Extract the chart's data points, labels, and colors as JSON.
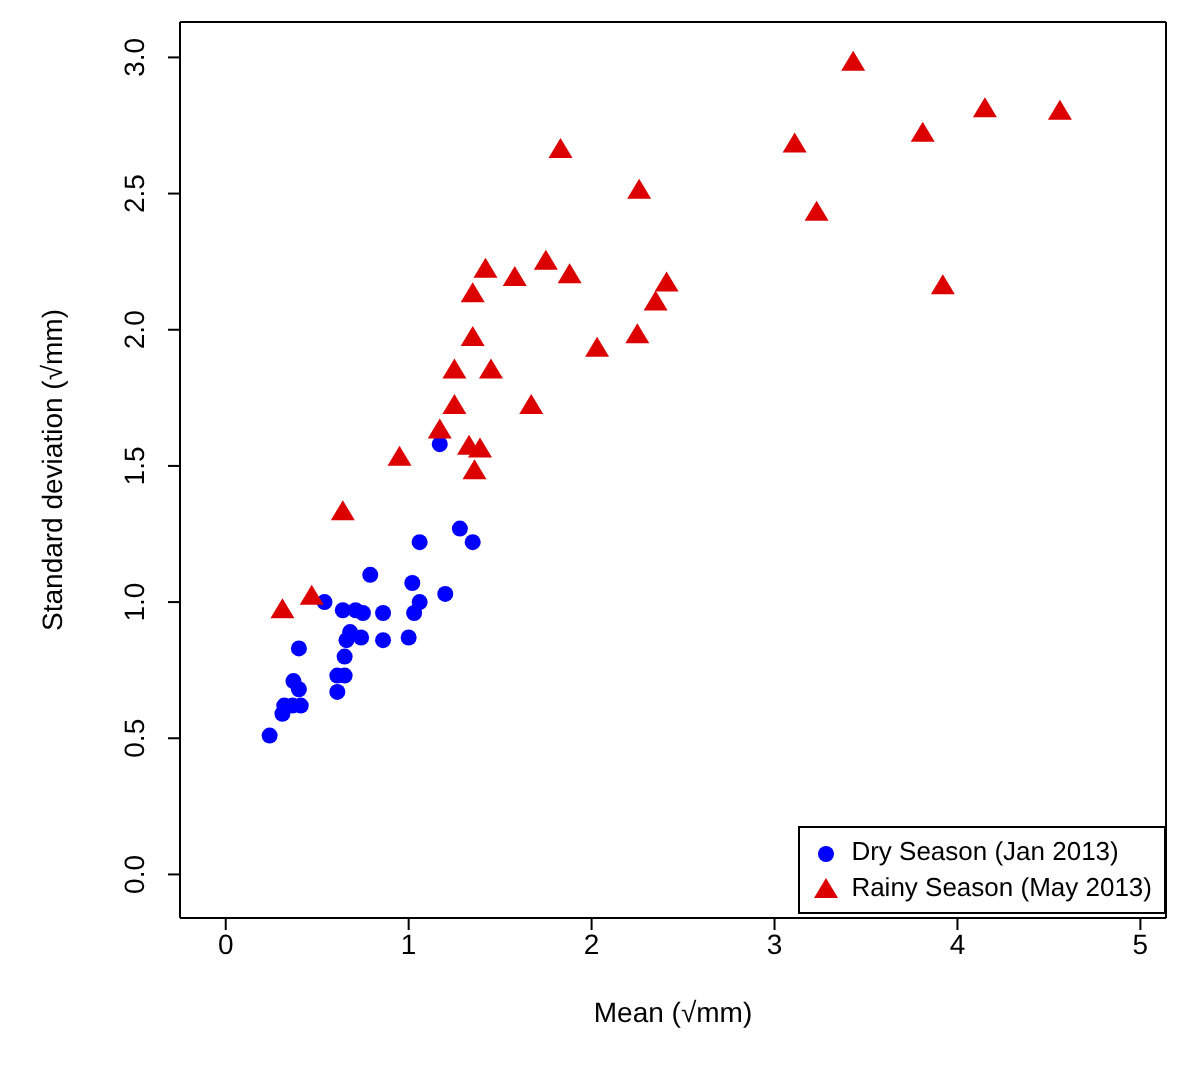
{
  "chart_data": {
    "type": "scatter",
    "xlabel": "Mean (√mm)",
    "ylabel": "Standard deviation (√mm)",
    "xlim": [
      -0.25,
      5.14
    ],
    "ylim": [
      -0.16,
      3.13
    ],
    "xticks": [
      0,
      1,
      2,
      3,
      4,
      5
    ],
    "yticks": [
      {
        "value": 0,
        "label": "0.0"
      },
      {
        "value": 0.5,
        "label": "0.5"
      },
      {
        "value": 1,
        "label": "1.0"
      },
      {
        "value": 1.5,
        "label": "1.5"
      },
      {
        "value": 2,
        "label": "2.0"
      },
      {
        "value": 2.5,
        "label": "2.5"
      },
      {
        "value": 3,
        "label": "3.0"
      }
    ],
    "legend": "bottom right",
    "grid": false,
    "series": [
      {
        "name": "Dry Season (Jan 2013)",
        "color": "#0000ff",
        "marker": "circle",
        "x": [
          0.24,
          0.31,
          0.32,
          0.365,
          0.41,
          0.37,
          0.4,
          0.4,
          0.61,
          0.61,
          0.65,
          0.65,
          0.66,
          0.68,
          0.74,
          0.54,
          0.64,
          0.71,
          0.75,
          0.86,
          0.86,
          0.79,
          1.0,
          1.02,
          1.06,
          1.03,
          1.2,
          1.06,
          1.28,
          1.35,
          1.17
        ],
        "values": [
          0.51,
          0.59,
          0.62,
          0.62,
          0.62,
          0.71,
          0.68,
          0.83,
          0.67,
          0.73,
          0.73,
          0.8,
          0.86,
          0.89,
          0.87,
          1.0,
          0.97,
          0.97,
          0.96,
          0.96,
          0.86,
          1.1,
          0.87,
          1.07,
          1.0,
          0.96,
          1.03,
          1.22,
          1.27,
          1.22,
          1.58
        ]
      },
      {
        "name": "Rainy Season (May 2013)",
        "color": "#dd0000",
        "marker": "triangle",
        "x": [
          0.31,
          0.47,
          0.64,
          0.95,
          1.17,
          1.33,
          1.39,
          1.36,
          1.25,
          1.67,
          1.25,
          1.45,
          1.35,
          2.03,
          1.35,
          1.42,
          1.58,
          1.75,
          1.88,
          1.83,
          2.26,
          2.41,
          2.35,
          2.25,
          3.43,
          3.11,
          3.23,
          3.81,
          4.15,
          4.56,
          3.92
        ],
        "values": [
          0.97,
          1.02,
          1.33,
          1.53,
          1.63,
          1.57,
          1.56,
          1.48,
          1.72,
          1.72,
          1.85,
          1.85,
          1.97,
          1.93,
          2.13,
          2.22,
          2.19,
          2.25,
          2.2,
          2.66,
          2.51,
          2.17,
          2.1,
          1.98,
          2.98,
          2.68,
          2.43,
          2.72,
          2.81,
          2.8,
          2.16
        ]
      }
    ]
  }
}
